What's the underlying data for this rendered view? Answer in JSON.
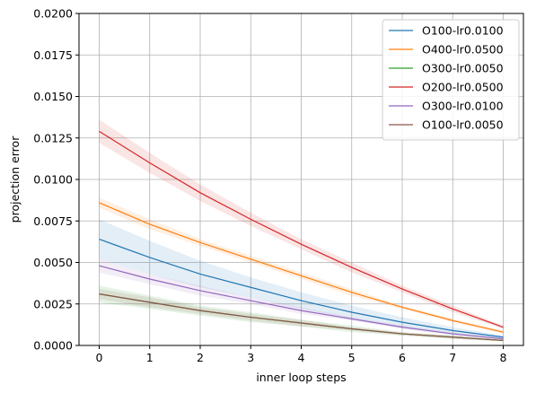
{
  "chart_data": {
    "type": "line",
    "xlabel": "inner loop steps",
    "ylabel": "projection error",
    "xlim": [
      -0.4,
      8.4
    ],
    "ylim": [
      0,
      0.02
    ],
    "xticks": [
      0,
      1,
      2,
      3,
      4,
      5,
      6,
      7,
      8
    ],
    "xtick_labels": [
      "0",
      "1",
      "2",
      "3",
      "4",
      "5",
      "6",
      "7",
      "8"
    ],
    "yticks": [
      0,
      0.0025,
      0.005,
      0.0075,
      0.01,
      0.0125,
      0.015,
      0.0175,
      0.02
    ],
    "ytick_labels": [
      "0.0000",
      "0.0025",
      "0.0050",
      "0.0075",
      "0.0100",
      "0.0125",
      "0.0150",
      "0.0175",
      "0.0200"
    ],
    "grid": true,
    "legend_position": "top-right",
    "x": [
      0,
      1,
      2,
      3,
      4,
      5,
      6,
      7,
      8
    ],
    "series": [
      {
        "name": "O100-lr0.0100",
        "color": "#1f77b4",
        "values": [
          0.0064,
          0.0053,
          0.0043,
          0.0035,
          0.0027,
          0.002,
          0.0014,
          0.0009,
          0.0005
        ],
        "band": [
          0.0012,
          0.001,
          0.0008,
          0.0006,
          0.0005,
          0.0004,
          0.0003,
          0.0002,
          0.0001
        ]
      },
      {
        "name": "O400-lr0.0500",
        "color": "#ff7f0e",
        "values": [
          0.0086,
          0.0073,
          0.0062,
          0.0052,
          0.0042,
          0.0032,
          0.0023,
          0.0015,
          0.0008
        ],
        "band": [
          0.0003,
          0.0003,
          0.0002,
          0.0002,
          0.0002,
          0.0002,
          0.0001,
          0.0001,
          0.0001
        ]
      },
      {
        "name": "O300-lr0.0050",
        "color": "#2ca02c",
        "values": [
          0.0031,
          0.0026,
          0.0021,
          0.0017,
          0.00135,
          0.001,
          0.0007,
          0.0005,
          0.0003
        ],
        "band": [
          0.0005,
          0.0004,
          0.0003,
          0.0003,
          0.0002,
          0.0002,
          0.0001,
          0.0001,
          5e-05
        ]
      },
      {
        "name": "O200-lr0.0500",
        "color": "#d62728",
        "values": [
          0.0129,
          0.011,
          0.0092,
          0.0076,
          0.0061,
          0.0047,
          0.0034,
          0.0022,
          0.0011
        ],
        "band": [
          0.0007,
          0.0006,
          0.0005,
          0.0004,
          0.0003,
          0.0003,
          0.0002,
          0.0002,
          0.0001
        ]
      },
      {
        "name": "O300-lr0.0100",
        "color": "#9467bd",
        "values": [
          0.0048,
          0.004,
          0.0033,
          0.0027,
          0.0021,
          0.0016,
          0.0011,
          0.0007,
          0.0004
        ],
        "band": [
          0.0004,
          0.0003,
          0.0003,
          0.0002,
          0.0002,
          0.0001,
          0.0001,
          0.0001,
          5e-05
        ]
      },
      {
        "name": "O100-lr0.0050",
        "color": "#8c564b",
        "values": [
          0.0031,
          0.0026,
          0.0021,
          0.0017,
          0.00135,
          0.001,
          0.0007,
          0.0005,
          0.0003
        ],
        "band": [
          0.0003,
          0.0003,
          0.0002,
          0.0002,
          0.0002,
          0.0001,
          0.0001,
          0.0001,
          5e-05
        ]
      }
    ]
  }
}
